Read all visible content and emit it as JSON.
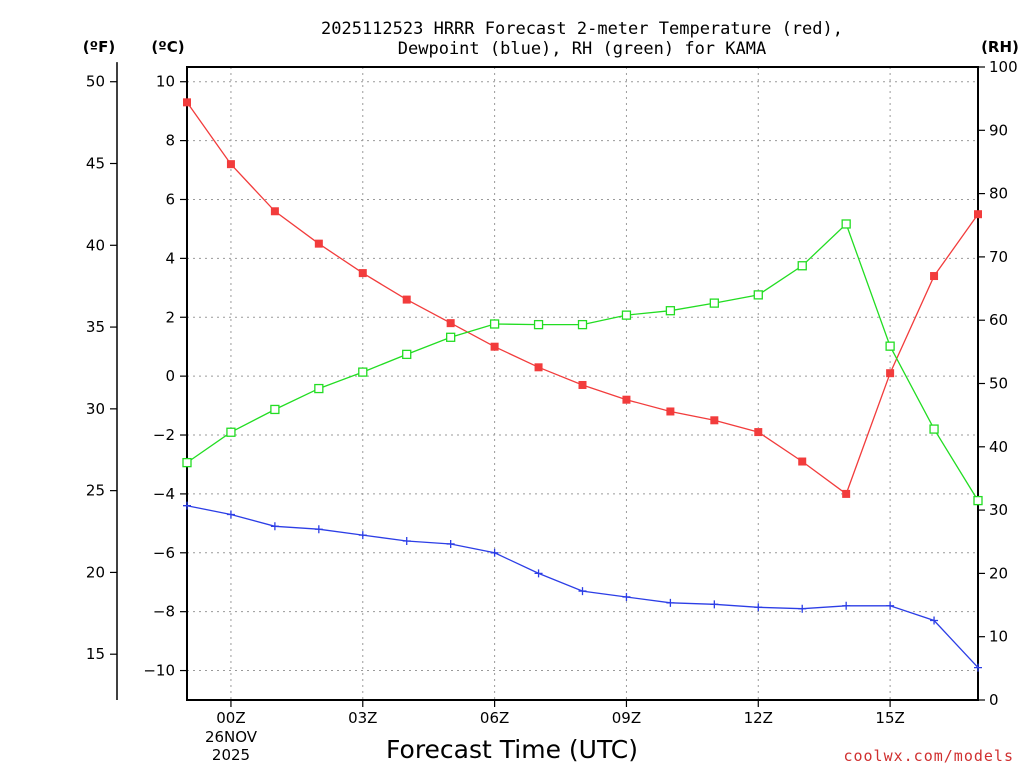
{
  "chart_data": {
    "type": "line",
    "title_line1": "2025112523 HRRR Forecast 2-meter Temperature (red),",
    "title_line2": "Dewpoint (blue), RH (green) for KAMA",
    "xlabel": "Forecast Time (UTC)",
    "x_ticks": [
      "00Z",
      "03Z",
      "06Z",
      "09Z",
      "12Z",
      "15Z"
    ],
    "date_label_line1": "26NOV",
    "date_label_line2": "2025",
    "x_hours": [
      -1,
      0,
      1,
      2,
      3,
      4,
      5,
      6,
      7,
      8,
      9,
      10,
      11,
      12,
      13,
      14,
      15,
      16,
      17
    ],
    "xlim": [
      -1,
      17
    ],
    "units": {
      "fahrenheit": "(ºF)",
      "celsius": "(ºC)",
      "rh": "(RH)"
    },
    "celsius_axis": {
      "ylim": [
        -11,
        10.5
      ],
      "ticks": [
        10,
        8,
        6,
        4,
        2,
        0,
        -2,
        -4,
        -6,
        -8,
        -10
      ],
      "tick_labels": [
        "10",
        "8",
        "6",
        "4",
        "2",
        "0",
        "−2",
        "−4",
        "−6",
        "−8",
        "−10"
      ]
    },
    "fahrenheit_axis": {
      "ticks": [
        50,
        45,
        40,
        35,
        30,
        25,
        20,
        15
      ],
      "tick_labels": [
        "50",
        "45",
        "40",
        "35",
        "30",
        "25",
        "20",
        "15"
      ]
    },
    "rh_axis": {
      "ylim": [
        0,
        100
      ],
      "ticks": [
        100,
        90,
        80,
        70,
        60,
        50,
        40,
        30,
        20,
        10,
        0
      ],
      "tick_labels": [
        "100",
        "90",
        "80",
        "70",
        "60",
        "50",
        "40",
        "30",
        "20",
        "10",
        "0"
      ]
    },
    "series": [
      {
        "name": "Temperature",
        "axis": "celsius",
        "color": "#f23c3c",
        "marker": "filled-square",
        "values": [
          9.3,
          7.2,
          5.6,
          4.5,
          3.5,
          2.6,
          1.8,
          1.0,
          0.3,
          -0.3,
          -0.8,
          -1.2,
          -1.5,
          -1.9,
          -2.9,
          -4.0,
          0.1,
          3.4,
          5.5
        ]
      },
      {
        "name": "Dewpoint",
        "axis": "celsius",
        "color": "#2c3ee6",
        "marker": "plus",
        "values": [
          -4.4,
          -4.7,
          -5.1,
          -5.2,
          -5.4,
          -5.6,
          -5.7,
          -6.0,
          -6.7,
          -7.3,
          -7.5,
          -7.7,
          -7.75,
          -7.85,
          -7.9,
          -7.8,
          -7.8,
          -8.3,
          -9.9
        ]
      },
      {
        "name": "RH",
        "axis": "rh",
        "color": "#22dd22",
        "marker": "open-square",
        "values": [
          37.5,
          42.3,
          45.9,
          49.2,
          51.8,
          54.6,
          57.3,
          59.4,
          59.3,
          59.3,
          60.8,
          61.5,
          62.7,
          64.0,
          68.6,
          75.2,
          55.9,
          42.8,
          31.5
        ]
      }
    ],
    "watermark": "coolwx.com/models"
  }
}
